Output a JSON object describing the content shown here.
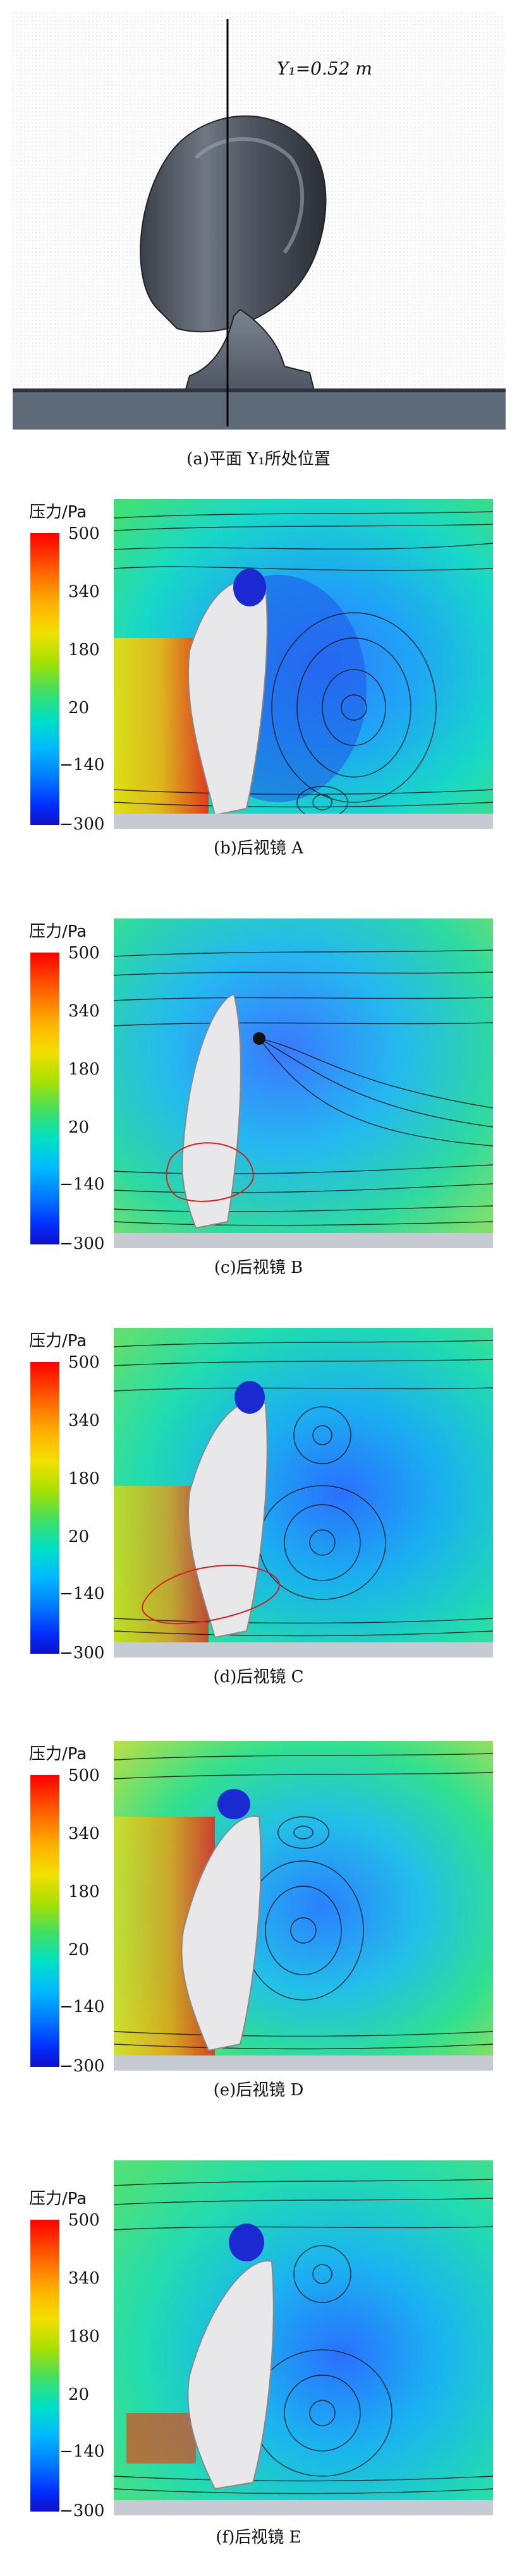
{
  "figure_a": {
    "annotation": "Y₁=0.52 m",
    "caption": "(a)平面 Y₁所处位置"
  },
  "legend": {
    "title": "压力/Pa",
    "ticks": [
      "500",
      "340",
      "180",
      "20",
      "−140",
      "−300"
    ]
  },
  "panels": [
    {
      "caption": "(b)后视镜 A"
    },
    {
      "caption": "(c)后视镜 B"
    },
    {
      "caption": "(d)后视镜 C"
    },
    {
      "caption": "(e)后视镜 D"
    },
    {
      "caption": "(f)后视镜 E"
    }
  ],
  "colors": {
    "pressure_high": "#ff0000",
    "pressure_low": "#1010c8",
    "mirror_body": "#e8e8ea",
    "ground": "#c5cad3",
    "highlight_ellipse": "#d42020"
  }
}
